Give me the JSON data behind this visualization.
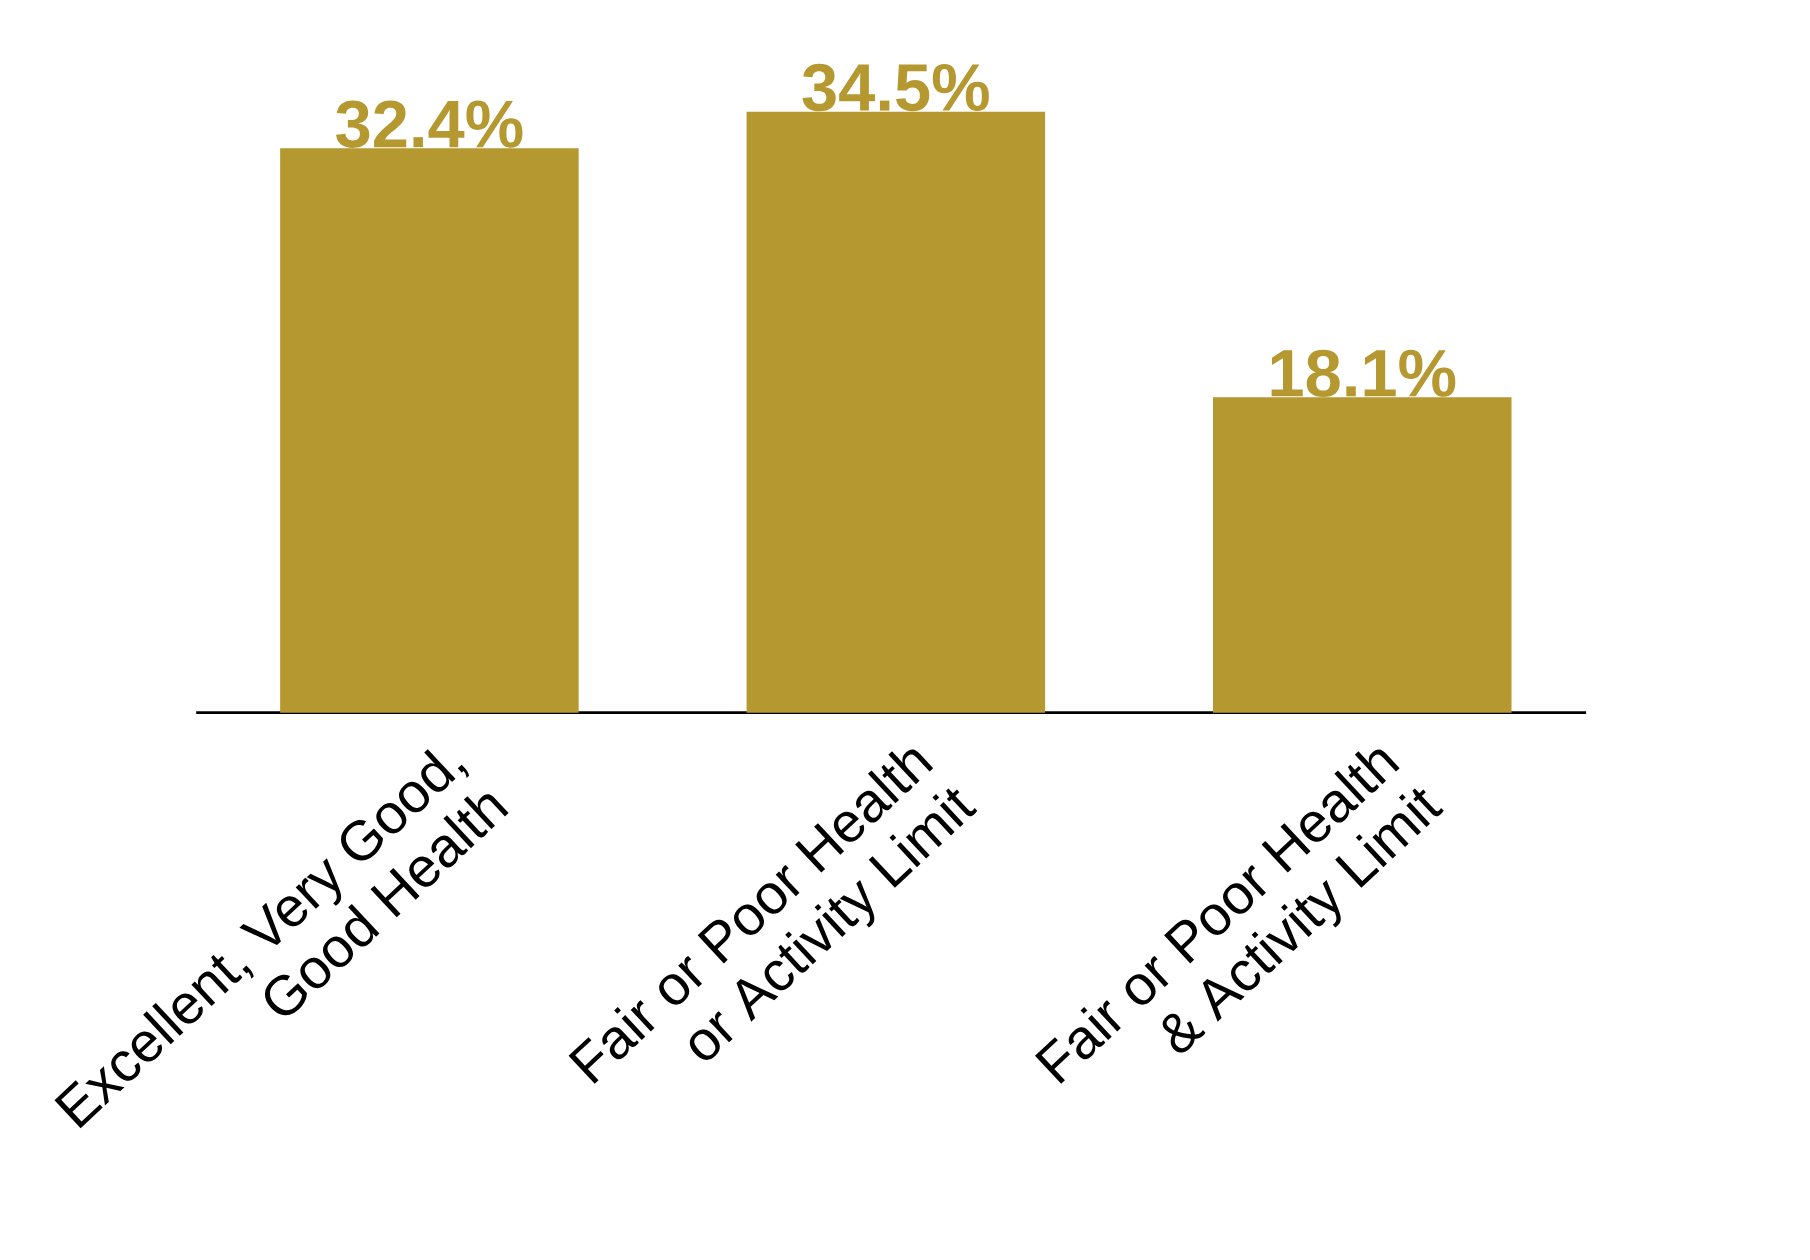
{
  "chart_data": {
    "type": "bar",
    "categories": [
      "Excellent, Very Good, Good Health",
      "Fair or Poor Health or Activity Limit",
      "Fair or Poor Health & Activity Limit"
    ],
    "values": [
      32.4,
      34.5,
      18.1
    ],
    "color": "#b5982f",
    "data_labels": true,
    "value_labels": [
      "32.4%",
      "34.5%",
      "18.1%"
    ]
  }
}
